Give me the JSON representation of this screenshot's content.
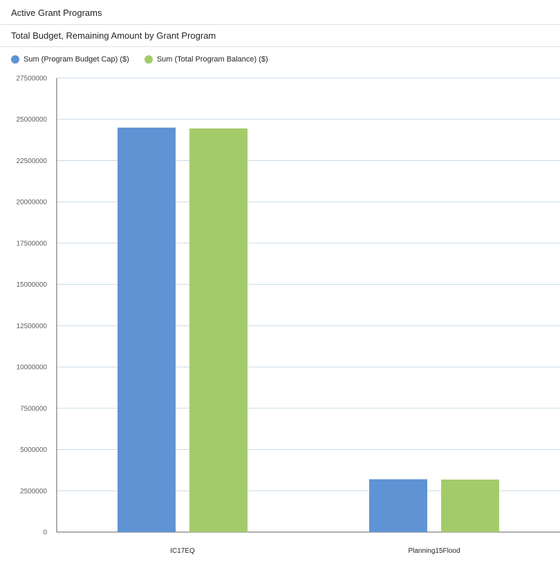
{
  "page": {
    "title": "Active Grant Programs"
  },
  "chart_data": {
    "type": "bar",
    "title": "Total Budget, Remaining Amount by Grant Program",
    "xlabel": "",
    "ylabel": "",
    "categories": [
      "IC17EQ",
      "Planning15Flood"
    ],
    "series": [
      {
        "name": "Sum (Program Budget Cap) ($)",
        "color": "#5f93d4",
        "values": [
          24500000,
          3200000
        ]
      },
      {
        "name": "Sum (Total Program Balance) ($)",
        "color": "#a4cb6a",
        "values": [
          24450000,
          3180000
        ]
      }
    ],
    "ylim": [
      0,
      27500000
    ],
    "yticks": [
      "0",
      "2500000",
      "5000000",
      "7500000",
      "10000000",
      "12500000",
      "15000000",
      "17500000",
      "20000000",
      "22500000",
      "25000000",
      "27500000"
    ],
    "grid": true,
    "legend_position": "top-left"
  }
}
